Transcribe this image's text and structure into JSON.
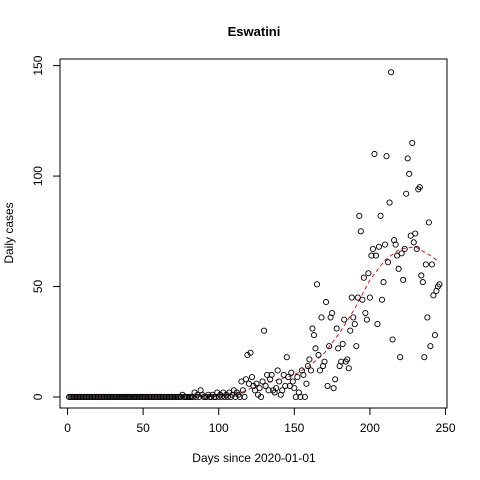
{
  "chart_data": {
    "type": "scatter",
    "title": "Eswatini",
    "xlabel": "Days since 2020-01-01",
    "ylabel": "Daily cases",
    "xlim": [
      -5,
      251
    ],
    "ylim": [
      -5,
      153
    ],
    "xticks": [
      0,
      50,
      100,
      150,
      200,
      250
    ],
    "yticks": [
      0,
      50,
      100,
      150
    ],
    "grid": false,
    "legend": "none",
    "point_color": "#000000",
    "smooth_color": "#e4141b",
    "points": [
      [
        1,
        0
      ],
      [
        2,
        0
      ],
      [
        3,
        0
      ],
      [
        4,
        0
      ],
      [
        5,
        0
      ],
      [
        6,
        0
      ],
      [
        7,
        0
      ],
      [
        8,
        0
      ],
      [
        9,
        0
      ],
      [
        10,
        0
      ],
      [
        11,
        0
      ],
      [
        12,
        0
      ],
      [
        13,
        0
      ],
      [
        14,
        0
      ],
      [
        15,
        0
      ],
      [
        16,
        0
      ],
      [
        17,
        0
      ],
      [
        18,
        0
      ],
      [
        19,
        0
      ],
      [
        20,
        0
      ],
      [
        21,
        0
      ],
      [
        22,
        0
      ],
      [
        23,
        0
      ],
      [
        24,
        0
      ],
      [
        25,
        0
      ],
      [
        26,
        0
      ],
      [
        27,
        0
      ],
      [
        28,
        0
      ],
      [
        29,
        0
      ],
      [
        30,
        0
      ],
      [
        31,
        0
      ],
      [
        32,
        0
      ],
      [
        33,
        0
      ],
      [
        34,
        0
      ],
      [
        35,
        0
      ],
      [
        36,
        0
      ],
      [
        37,
        0
      ],
      [
        38,
        0
      ],
      [
        39,
        0
      ],
      [
        40,
        0
      ],
      [
        41,
        0
      ],
      [
        42,
        0
      ],
      [
        43,
        0
      ],
      [
        44,
        0
      ],
      [
        45,
        0
      ],
      [
        46,
        0
      ],
      [
        47,
        0
      ],
      [
        48,
        0
      ],
      [
        49,
        0
      ],
      [
        50,
        0
      ],
      [
        51,
        0
      ],
      [
        52,
        0
      ],
      [
        53,
        0
      ],
      [
        54,
        0
      ],
      [
        55,
        0
      ],
      [
        56,
        0
      ],
      [
        57,
        0
      ],
      [
        58,
        0
      ],
      [
        59,
        0
      ],
      [
        60,
        0
      ],
      [
        61,
        0
      ],
      [
        62,
        0
      ],
      [
        63,
        0
      ],
      [
        64,
        0
      ],
      [
        65,
        0
      ],
      [
        66,
        0
      ],
      [
        67,
        0
      ],
      [
        68,
        0
      ],
      [
        69,
        0
      ],
      [
        70,
        0
      ],
      [
        71,
        0
      ],
      [
        72,
        0
      ],
      [
        73,
        0
      ],
      [
        74,
        0
      ],
      [
        75,
        0
      ],
      [
        76,
        1
      ],
      [
        77,
        0
      ],
      [
        78,
        0
      ],
      [
        79,
        0
      ],
      [
        80,
        0
      ],
      [
        81,
        0
      ],
      [
        82,
        0
      ],
      [
        83,
        0
      ],
      [
        84,
        2
      ],
      [
        85,
        0
      ],
      [
        86,
        1
      ],
      [
        87,
        0
      ],
      [
        88,
        3
      ],
      [
        89,
        1
      ],
      [
        90,
        0
      ],
      [
        91,
        0
      ],
      [
        92,
        0
      ],
      [
        93,
        1
      ],
      [
        94,
        0
      ],
      [
        95,
        0
      ],
      [
        96,
        1
      ],
      [
        97,
        0
      ],
      [
        98,
        0
      ],
      [
        99,
        2
      ],
      [
        100,
        0
      ],
      [
        101,
        1
      ],
      [
        102,
        0
      ],
      [
        103,
        2
      ],
      [
        104,
        0
      ],
      [
        105,
        1
      ],
      [
        106,
        0
      ],
      [
        107,
        2
      ],
      [
        108,
        0
      ],
      [
        109,
        1
      ],
      [
        110,
        3
      ],
      [
        111,
        0
      ],
      [
        112,
        2
      ],
      [
        113,
        1
      ],
      [
        114,
        0
      ],
      [
        115,
        7
      ],
      [
        116,
        3
      ],
      [
        117,
        0
      ],
      [
        118,
        8
      ],
      [
        119,
        19
      ],
      [
        120,
        6
      ],
      [
        121,
        20
      ],
      [
        122,
        9
      ],
      [
        123,
        5
      ],
      [
        124,
        3
      ],
      [
        125,
        6
      ],
      [
        126,
        1
      ],
      [
        127,
        4
      ],
      [
        128,
        0
      ],
      [
        129,
        7
      ],
      [
        130,
        30
      ],
      [
        131,
        5
      ],
      [
        132,
        10
      ],
      [
        133,
        3
      ],
      [
        134,
        8
      ],
      [
        135,
        10
      ],
      [
        136,
        3
      ],
      [
        137,
        2
      ],
      [
        138,
        4
      ],
      [
        139,
        12
      ],
      [
        140,
        7
      ],
      [
        141,
        1
      ],
      [
        142,
        3
      ],
      [
        143,
        10
      ],
      [
        144,
        5
      ],
      [
        145,
        18
      ],
      [
        146,
        9
      ],
      [
        147,
        5
      ],
      [
        148,
        11
      ],
      [
        149,
        7
      ],
      [
        150,
        4
      ],
      [
        151,
        0
      ],
      [
        152,
        9
      ],
      [
        153,
        2
      ],
      [
        154,
        0
      ],
      [
        155,
        12
      ],
      [
        156,
        10
      ],
      [
        157,
        0
      ],
      [
        158,
        6
      ],
      [
        159,
        14
      ],
      [
        160,
        17
      ],
      [
        161,
        12
      ],
      [
        162,
        31
      ],
      [
        163,
        28
      ],
      [
        164,
        22
      ],
      [
        165,
        51
      ],
      [
        166,
        19
      ],
      [
        167,
        12
      ],
      [
        168,
        36
      ],
      [
        169,
        14
      ],
      [
        170,
        16
      ],
      [
        171,
        43
      ],
      [
        172,
        5
      ],
      [
        173,
        23
      ],
      [
        174,
        36
      ],
      [
        175,
        38
      ],
      [
        176,
        4
      ],
      [
        177,
        8
      ],
      [
        178,
        31
      ],
      [
        179,
        22
      ],
      [
        180,
        14
      ],
      [
        181,
        16
      ],
      [
        182,
        24
      ],
      [
        183,
        35
      ],
      [
        184,
        16
      ],
      [
        185,
        17
      ],
      [
        186,
        13
      ],
      [
        187,
        30
      ],
      [
        188,
        45
      ],
      [
        189,
        36
      ],
      [
        190,
        33
      ],
      [
        191,
        23
      ],
      [
        192,
        45
      ],
      [
        193,
        82
      ],
      [
        194,
        75
      ],
      [
        195,
        44
      ],
      [
        196,
        54
      ],
      [
        197,
        38
      ],
      [
        198,
        35
      ],
      [
        199,
        56
      ],
      [
        200,
        45
      ],
      [
        201,
        64
      ],
      [
        202,
        67
      ],
      [
        203,
        110
      ],
      [
        204,
        64
      ],
      [
        205,
        33
      ],
      [
        206,
        68
      ],
      [
        207,
        82
      ],
      [
        208,
        44
      ],
      [
        209,
        52
      ],
      [
        210,
        69
      ],
      [
        211,
        109
      ],
      [
        212,
        61
      ],
      [
        213,
        88
      ],
      [
        214,
        147
      ],
      [
        215,
        26
      ],
      [
        216,
        71
      ],
      [
        217,
        69
      ],
      [
        218,
        64
      ],
      [
        219,
        58
      ],
      [
        220,
        18
      ],
      [
        221,
        65
      ],
      [
        222,
        53
      ],
      [
        223,
        67
      ],
      [
        224,
        92
      ],
      [
        225,
        108
      ],
      [
        226,
        101
      ],
      [
        227,
        73
      ],
      [
        228,
        115
      ],
      [
        229,
        70
      ],
      [
        230,
        74
      ],
      [
        231,
        67
      ],
      [
        232,
        94
      ],
      [
        233,
        95
      ],
      [
        234,
        55
      ],
      [
        235,
        52
      ],
      [
        236,
        18
      ],
      [
        237,
        60
      ],
      [
        238,
        36
      ],
      [
        239,
        79
      ],
      [
        240,
        23
      ],
      [
        241,
        60
      ],
      [
        242,
        46
      ],
      [
        243,
        28
      ],
      [
        244,
        48
      ],
      [
        245,
        50
      ],
      [
        246,
        51
      ]
    ],
    "smooth": [
      [
        0,
        0
      ],
      [
        20,
        0
      ],
      [
        40,
        0
      ],
      [
        60,
        0
      ],
      [
        80,
        0
      ],
      [
        100,
        0.3
      ],
      [
        110,
        1
      ],
      [
        115,
        2
      ],
      [
        120,
        3.5
      ],
      [
        125,
        5
      ],
      [
        130,
        6
      ],
      [
        140,
        8
      ],
      [
        150,
        10
      ],
      [
        160,
        14
      ],
      [
        170,
        20
      ],
      [
        180,
        29
      ],
      [
        190,
        40
      ],
      [
        200,
        53
      ],
      [
        210,
        62
      ],
      [
        220,
        67
      ],
      [
        230,
        68
      ],
      [
        240,
        64
      ],
      [
        246,
        61
      ]
    ]
  }
}
